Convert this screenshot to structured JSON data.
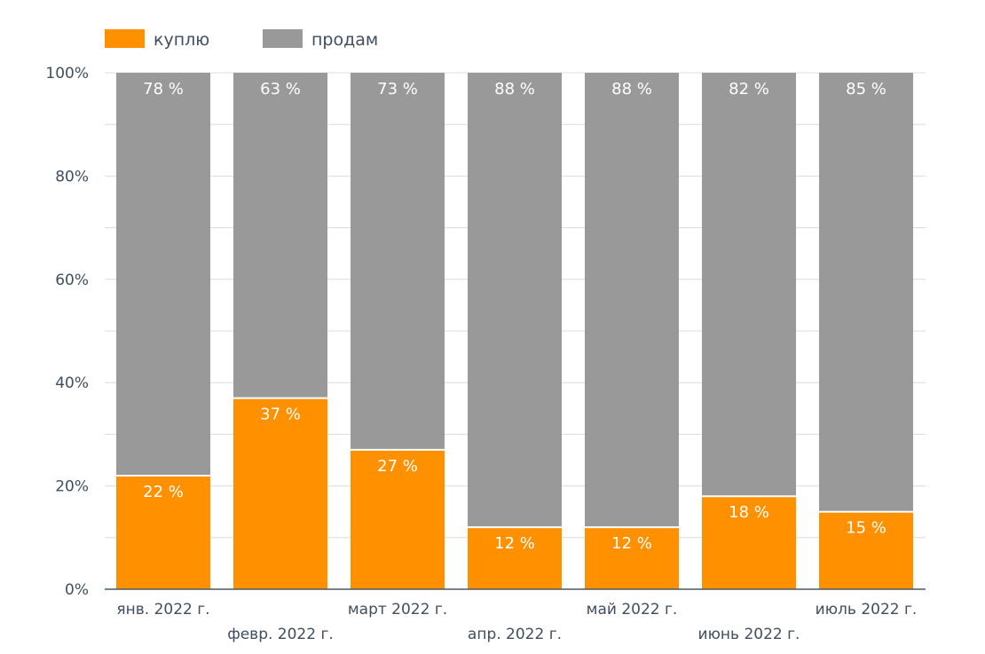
{
  "chart_data": {
    "type": "bar",
    "stacked": true,
    "stack_mode": "percent",
    "categories": [
      "янв. 2022 г.",
      "февр. 2022 г.",
      "март 2022 г.",
      "апр. 2022 г.",
      "май 2022 г.",
      "июнь 2022 г.",
      "июль 2022 г."
    ],
    "series": [
      {
        "name": "куплю",
        "color": "#ff9100",
        "values": [
          22,
          37,
          27,
          12,
          12,
          18,
          15
        ],
        "labels": [
          "22 %",
          "37 %",
          "27 %",
          "12 %",
          "12 %",
          "18 %",
          "15 %"
        ]
      },
      {
        "name": "продам",
        "color": "#999999",
        "values": [
          78,
          63,
          73,
          88,
          88,
          82,
          85
        ],
        "labels": [
          "78 %",
          "63 %",
          "73 %",
          "88 %",
          "88 %",
          "82 %",
          "85 %"
        ]
      }
    ],
    "ylim": [
      0,
      100
    ],
    "y_ticks": [
      "0%",
      "20%",
      "40%",
      "60%",
      "80%",
      "100%"
    ],
    "grid": true,
    "legend": "top-left"
  }
}
